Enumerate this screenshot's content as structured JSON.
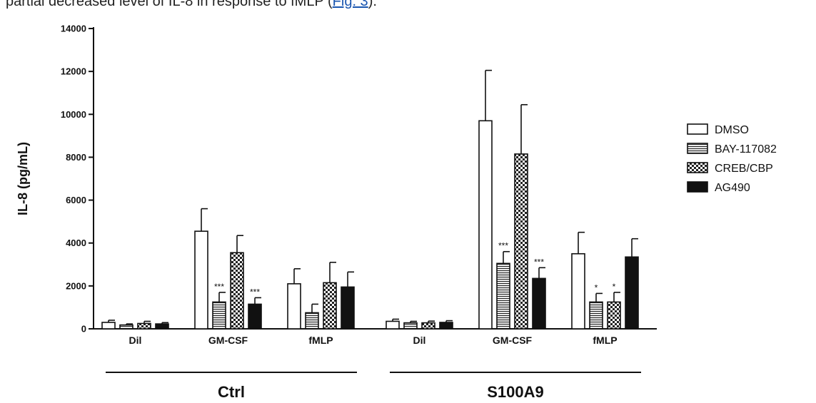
{
  "caption_fragment": {
    "text": "partial decreased level of IL-8 in response to fMLP (",
    "link_text": "Fig. 3",
    "tail": ")."
  },
  "chart_data": {
    "type": "bar",
    "ylabel": "IL-8 (pg/mL)",
    "ylim": [
      0,
      14000
    ],
    "yticks": [
      0,
      2000,
      4000,
      6000,
      8000,
      10000,
      12000,
      14000
    ],
    "groups": [
      {
        "label": "Ctrl",
        "categories": [
          "Dil",
          "GM-CSF",
          "fMLP"
        ]
      },
      {
        "label": "S100A9",
        "categories": [
          "Dil",
          "GM-CSF",
          "fMLP"
        ]
      }
    ],
    "series": [
      {
        "name": "DMSO",
        "pattern": "open",
        "values": [
          300,
          4550,
          2100,
          350,
          9700,
          3500
        ],
        "errors": [
          100,
          1050,
          700,
          100,
          2350,
          1000
        ],
        "significance": [
          "",
          "",
          "",
          "",
          "",
          ""
        ]
      },
      {
        "name": "BAY-117082",
        "pattern": "horizontal-lines",
        "values": [
          180,
          1250,
          750,
          280,
          3050,
          1250
        ],
        "errors": [
          50,
          450,
          400,
          70,
          550,
          400
        ],
        "significance": [
          "",
          "***",
          "",
          "",
          "***",
          "*"
        ]
      },
      {
        "name": "CREB/CBP",
        "pattern": "checker",
        "values": [
          250,
          3550,
          2150,
          280,
          8150,
          1250
        ],
        "errors": [
          100,
          800,
          950,
          80,
          2300,
          450
        ],
        "significance": [
          "",
          "",
          "",
          "",
          "",
          "*"
        ]
      },
      {
        "name": "AG490",
        "pattern": "solid-black",
        "values": [
          230,
          1150,
          1950,
          300,
          2350,
          3350
        ],
        "errors": [
          60,
          300,
          700,
          80,
          500,
          850
        ],
        "significance": [
          "",
          "***",
          "",
          "",
          "***",
          ""
        ]
      }
    ],
    "legend_position": "right",
    "grid": false
  }
}
